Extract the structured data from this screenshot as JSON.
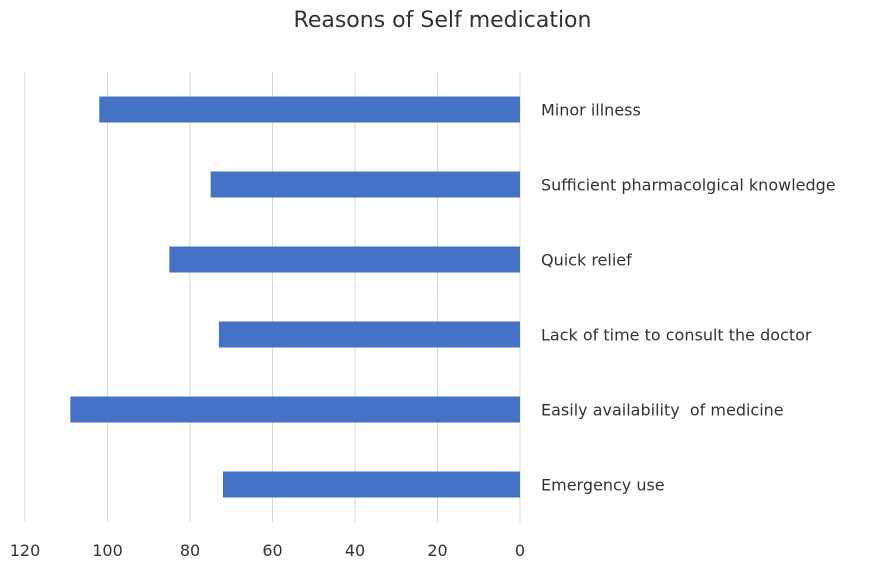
{
  "chart_data": {
    "type": "bar",
    "orientation": "horizontal",
    "x_axis_reversed": true,
    "title": "Reasons of Self medication",
    "xlabel": "",
    "ylabel": "",
    "categories": [
      "Minor illness",
      "Sufficient pharmacolgical knowledge",
      "Quick relief",
      "Lack of time to consult the doctor",
      "Easily availability  of medicine",
      "Emergency use"
    ],
    "values": [
      102,
      75,
      85,
      73,
      109,
      72
    ],
    "xlim": [
      0,
      120
    ],
    "x_ticks": [
      "0",
      "20",
      "40",
      "60",
      "80",
      "100",
      "120"
    ],
    "grid": true,
    "legend": "none",
    "colors": {
      "bar": "#4472C4",
      "grid": "#D9D9D9",
      "text": "#333333"
    }
  }
}
